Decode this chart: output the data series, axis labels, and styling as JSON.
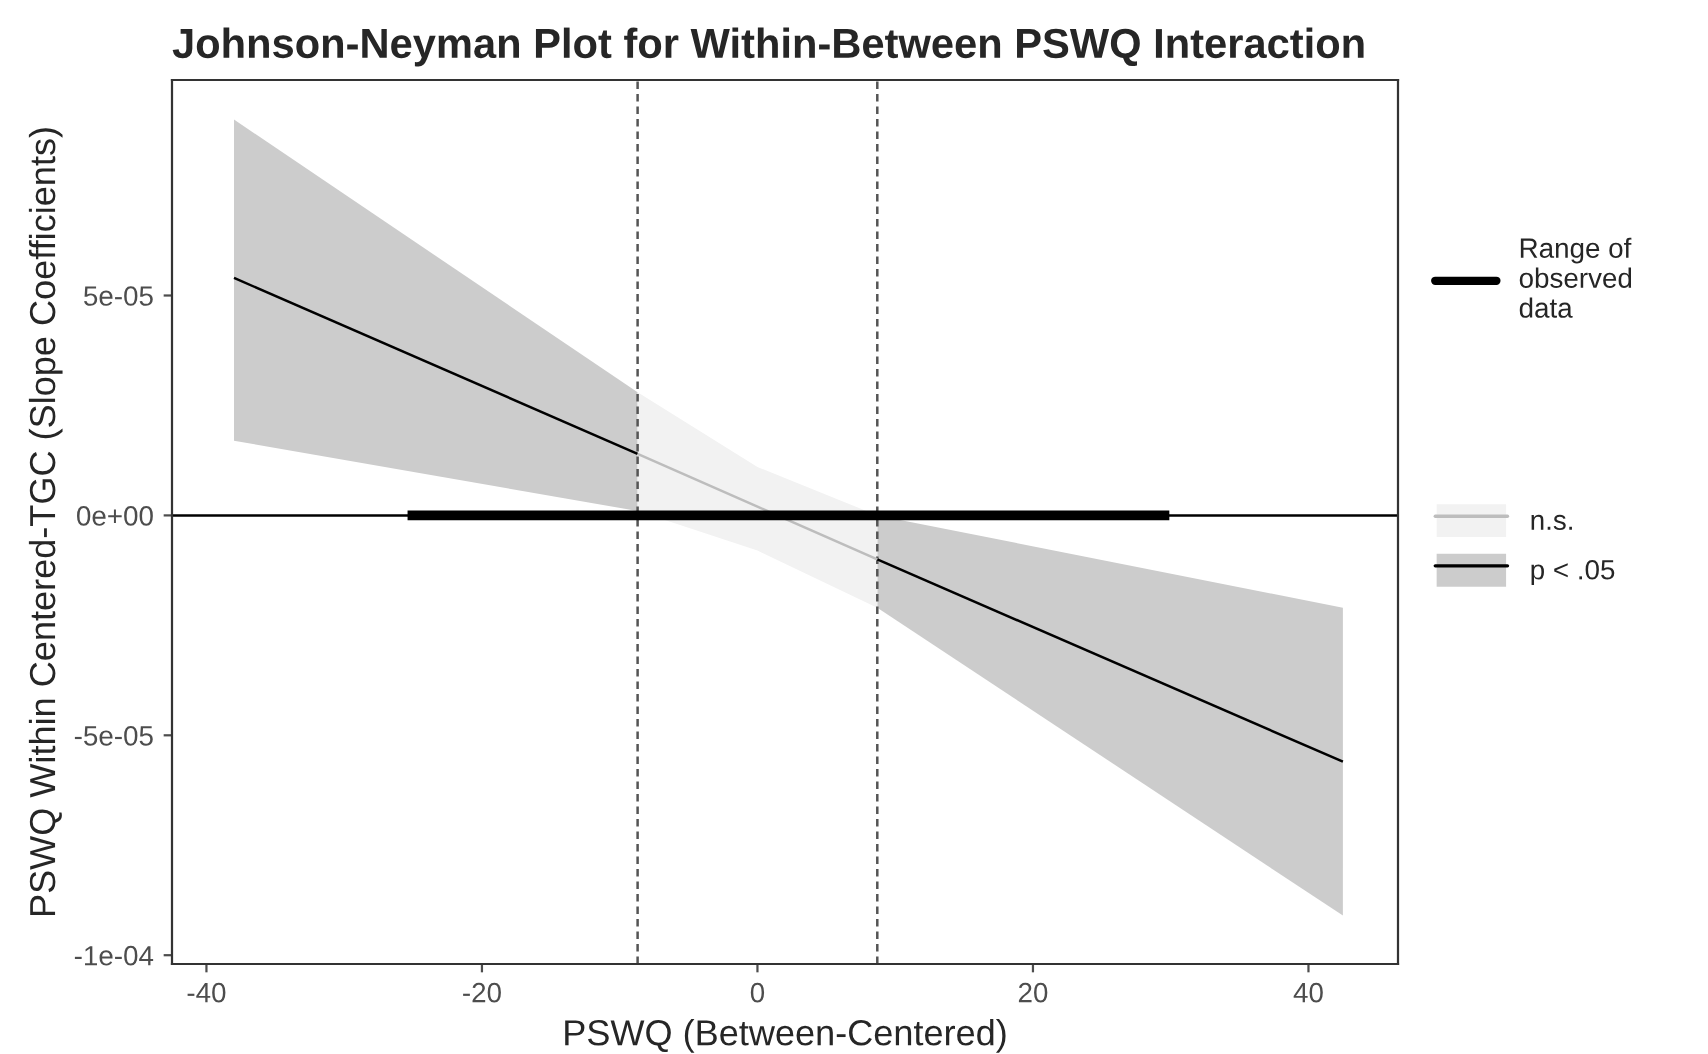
{
  "chart_data": {
    "type": "line",
    "title": "Johnson-Neyman Plot for Within-Between PSWQ Interaction",
    "xlabel": "PSWQ (Between-Centered)",
    "ylabel": "PSWQ Within Centered-TGC (Slope Coefficients)",
    "xlim": [
      -42.5,
      46.5
    ],
    "xticks": [
      -40,
      -20,
      0,
      20,
      40
    ],
    "ylim": [
      -0.000102,
      9.9e-05
    ],
    "yticks": [
      {
        "value": -0.0001,
        "label": "-1e-04"
      },
      {
        "value": -5e-05,
        "label": "-5e-05"
      },
      {
        "value": 0,
        "label": "0e+00"
      },
      {
        "value": 5e-05,
        "label": "5e-05"
      }
    ],
    "series": [
      {
        "name": "p < .05",
        "color": "#000000",
        "x": [
          -38,
          -8.7
        ],
        "values": [
          5.4e-05,
          1.4e-05
        ],
        "lower": [
          1.7e-05,
          1e-06
        ],
        "upper": [
          9e-05,
          2.8e-05
        ]
      },
      {
        "color": "#000000",
        "x": [
          8.7,
          42.5
        ],
        "values": [
          -1e-05,
          -5.6e-05
        ],
        "lower": [
          -2.1e-05,
          -9.1e-05
        ],
        "upper": [
          0,
          -2.1e-05
        ]
      },
      {
        "name": "n.s.",
        "color": "#bdbdbd",
        "x": [
          -8.7,
          0,
          8.7
        ],
        "values": [
          1.4e-05,
          2e-06,
          -1e-05
        ],
        "lower": [
          1e-06,
          -8e-06,
          -2.1e-05
        ],
        "upper": [
          2.8e-05,
          1.1e-05,
          0
        ]
      },
      {
        "name": "Range of observed data",
        "color": "#000000",
        "x": [
          -25.4,
          29.9
        ],
        "values": [
          0,
          0
        ]
      }
    ],
    "ref_lines": [
      {
        "axis": "y",
        "value": 0,
        "color": "#000000",
        "line_style": "solid"
      },
      {
        "axis": "x",
        "value": -8.7,
        "color": "#555555",
        "line_style": "dashed"
      },
      {
        "axis": "x",
        "value": 8.7,
        "color": "#555555",
        "line_style": "dashed"
      }
    ],
    "grid": false,
    "legend": "right"
  }
}
